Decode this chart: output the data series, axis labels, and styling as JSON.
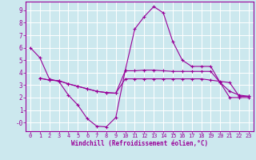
{
  "xlabel": "Windchill (Refroidissement éolien,°C)",
  "bg_color": "#cce8ee",
  "line_color": "#990099",
  "grid_color": "#ffffff",
  "xlim": [
    -0.5,
    23.5
  ],
  "ylim": [
    -0.7,
    9.7
  ],
  "xticks": [
    0,
    1,
    2,
    3,
    4,
    5,
    6,
    7,
    8,
    9,
    10,
    11,
    12,
    13,
    14,
    15,
    16,
    17,
    18,
    19,
    20,
    21,
    22,
    23
  ],
  "yticks": [
    0,
    1,
    2,
    3,
    4,
    5,
    6,
    7,
    8,
    9
  ],
  "ytick_labels": [
    "-0",
    "1",
    "2",
    "3",
    "4",
    "5",
    "6",
    "7",
    "8",
    "9"
  ],
  "series": [
    {
      "x": [
        0,
        1,
        2,
        3,
        4,
        5,
        6,
        7,
        8,
        9,
        10,
        11,
        12,
        13,
        14,
        15,
        16,
        17,
        18,
        19,
        20,
        21,
        22,
        23
      ],
      "y": [
        6.0,
        5.2,
        3.5,
        3.3,
        2.2,
        1.4,
        0.3,
        -0.3,
        -0.35,
        0.4,
        4.2,
        7.5,
        8.5,
        9.3,
        8.8,
        6.5,
        5.0,
        4.5,
        4.5,
        4.5,
        3.2,
        2.0,
        2.0,
        2.0
      ]
    },
    {
      "x": [
        1,
        2,
        3,
        4,
        5,
        6,
        7,
        8,
        9,
        10,
        11,
        12,
        13,
        14,
        15,
        16,
        17,
        18,
        19,
        20,
        21,
        22,
        23
      ],
      "y": [
        3.55,
        3.4,
        3.35,
        3.1,
        2.9,
        2.7,
        2.5,
        2.4,
        2.35,
        4.15,
        4.15,
        4.2,
        4.2,
        4.15,
        4.1,
        4.1,
        4.1,
        4.1,
        4.1,
        3.2,
        2.5,
        2.2,
        2.1
      ]
    },
    {
      "x": [
        1,
        2,
        3,
        4,
        5,
        6,
        7,
        8,
        9,
        10,
        11,
        12,
        13,
        14,
        15,
        16,
        17,
        18,
        19,
        20,
        21,
        22,
        23
      ],
      "y": [
        3.55,
        3.4,
        3.35,
        3.1,
        2.9,
        2.7,
        2.5,
        2.4,
        2.35,
        3.5,
        3.5,
        3.5,
        3.5,
        3.5,
        3.5,
        3.5,
        3.5,
        3.5,
        3.4,
        3.3,
        3.2,
        2.1,
        2.1
      ]
    }
  ]
}
